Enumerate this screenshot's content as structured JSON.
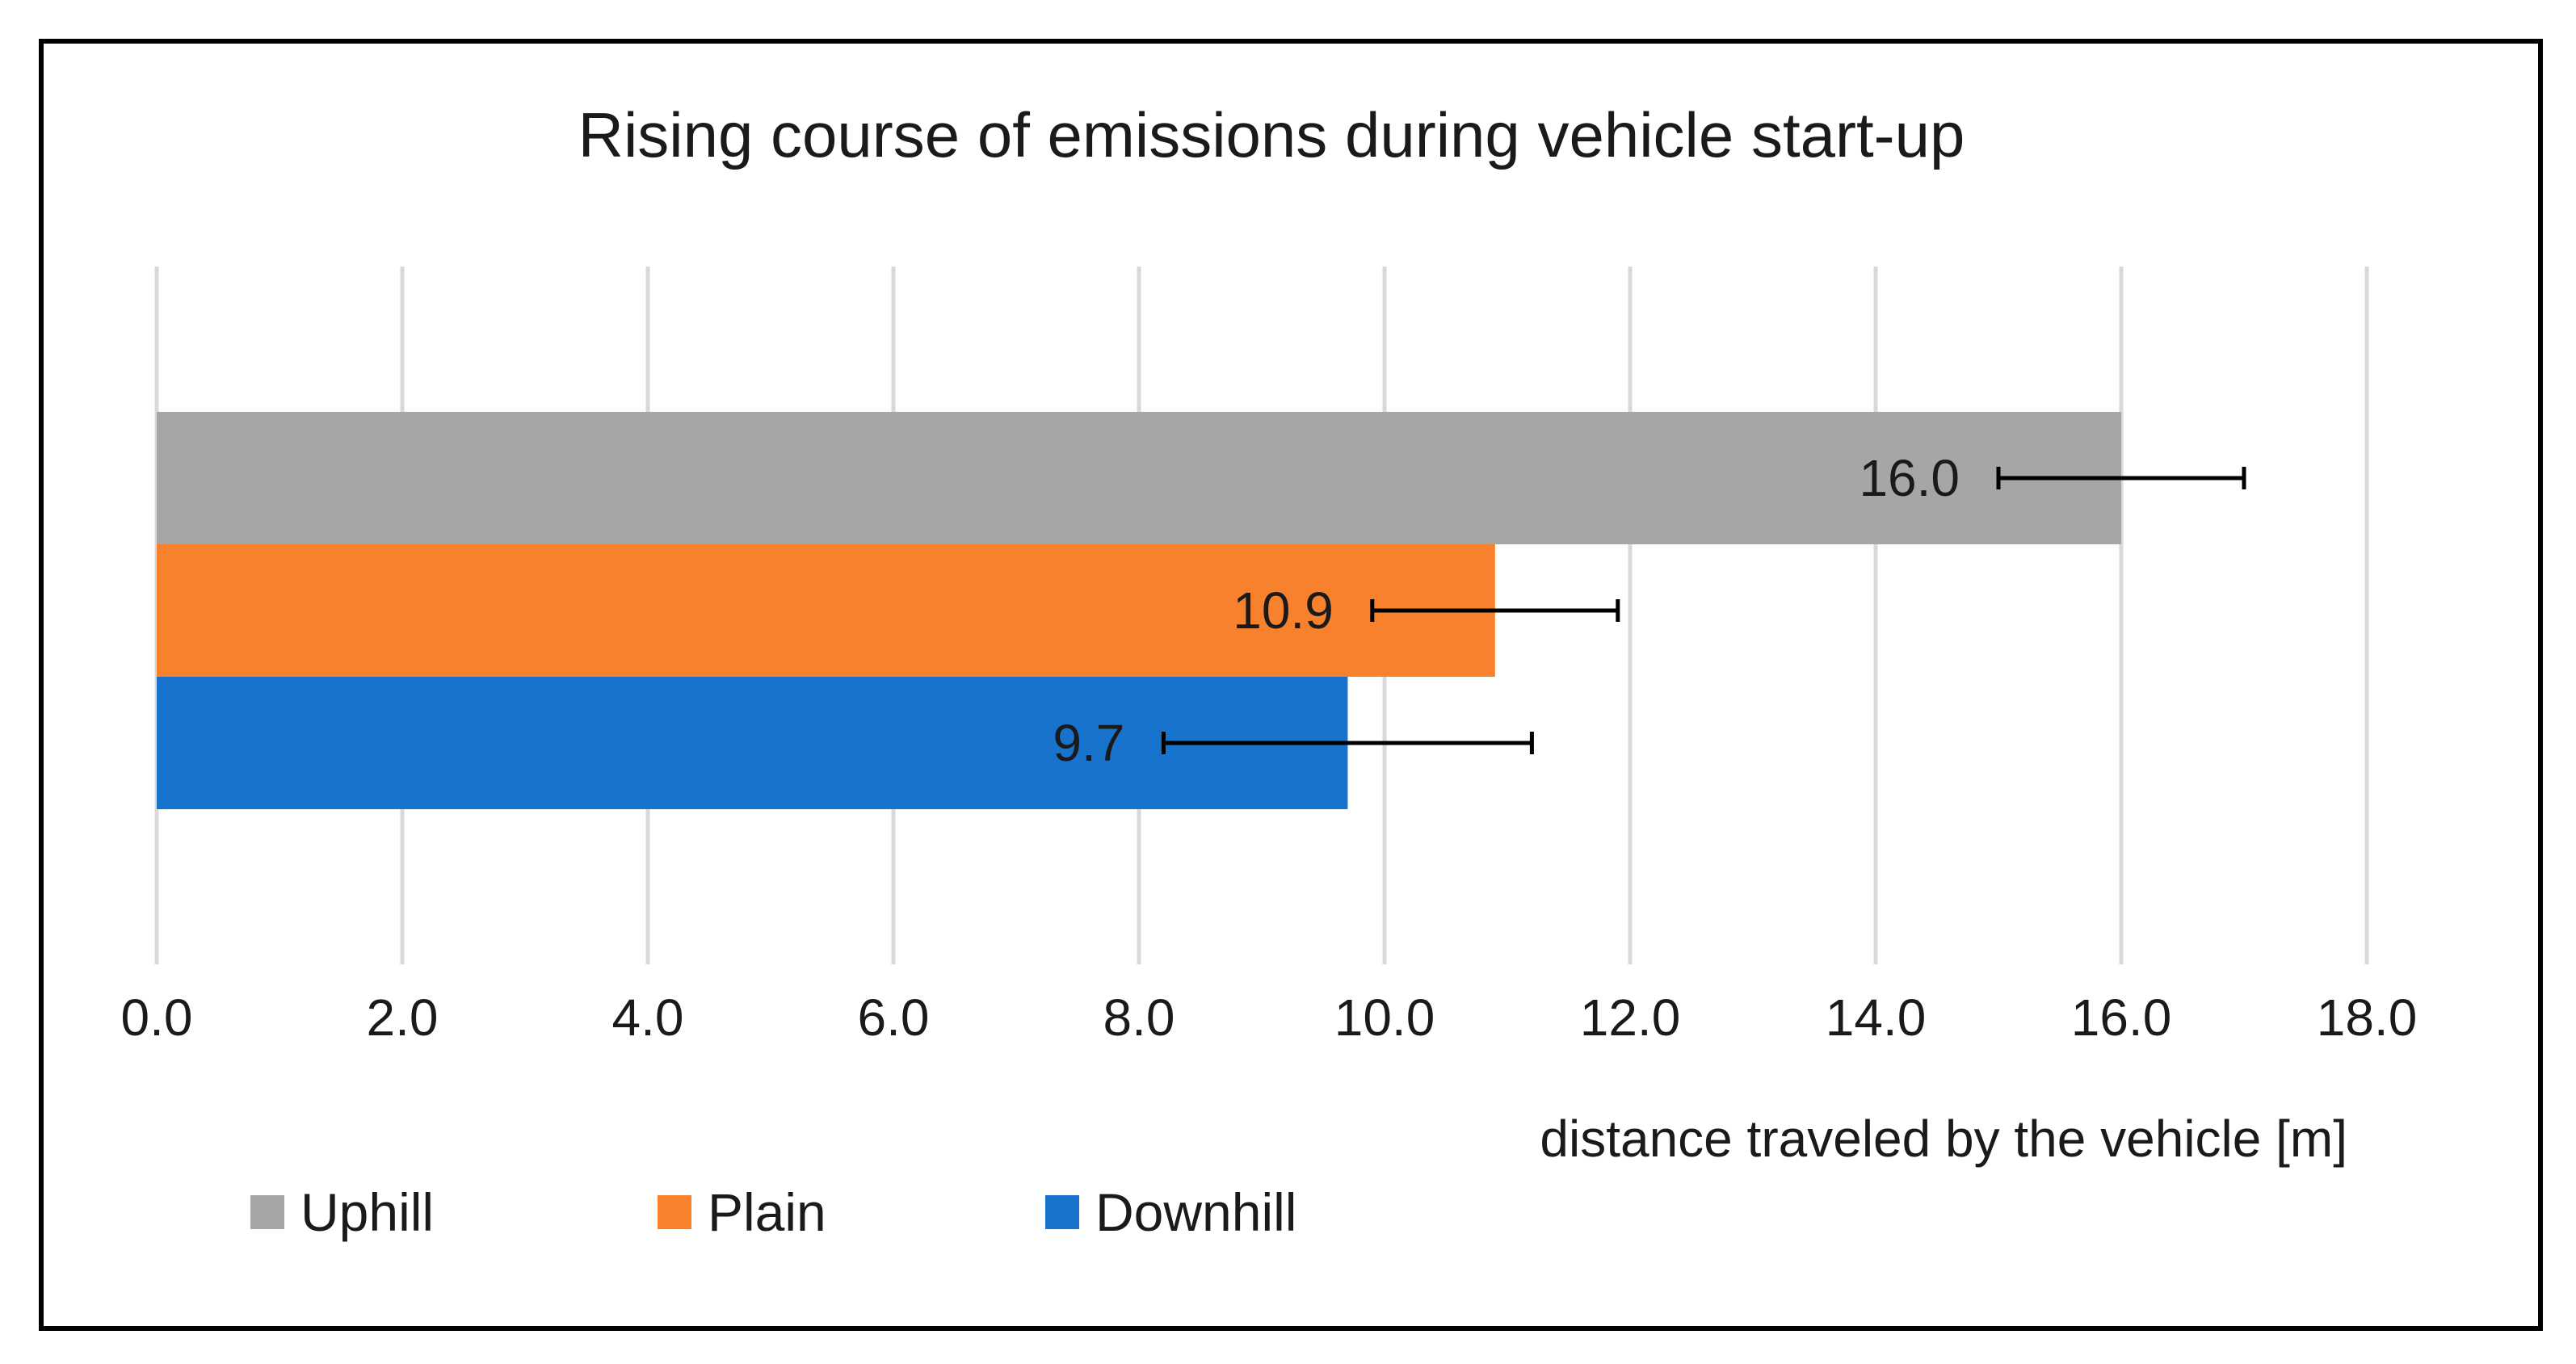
{
  "chart_data": {
    "type": "bar",
    "orientation": "horizontal",
    "title": "Rising course of emissions during vehicle start-up",
    "xlabel": "distance traveled by the vehicle [m]",
    "ylabel": "",
    "xlim": [
      0,
      18
    ],
    "grid": true,
    "ticks": [
      {
        "value": 0,
        "label": "0.0"
      },
      {
        "value": 2,
        "label": "2.0"
      },
      {
        "value": 4,
        "label": "4.0"
      },
      {
        "value": 6,
        "label": "6.0"
      },
      {
        "value": 8,
        "label": "8.0"
      },
      {
        "value": 10,
        "label": "10.0"
      },
      {
        "value": 12,
        "label": "12.0"
      },
      {
        "value": 14,
        "label": "14.0"
      },
      {
        "value": 16,
        "label": "16.0"
      },
      {
        "value": 18,
        "label": "18.0"
      }
    ],
    "series": [
      {
        "name": "Uphill",
        "value": 16.0,
        "label": "16.0",
        "error": 1.0,
        "color": "#a6a6a6"
      },
      {
        "name": "Plain",
        "value": 10.9,
        "label": "10.9",
        "error": 1.0,
        "color": "#f7812d"
      },
      {
        "name": "Downhill",
        "value": 9.7,
        "label": "9.7",
        "error": 1.5,
        "color": "#1873cc"
      }
    ],
    "legend": {
      "position": "bottom-left",
      "items": [
        "Uphill",
        "Plain",
        "Downhill"
      ]
    }
  }
}
